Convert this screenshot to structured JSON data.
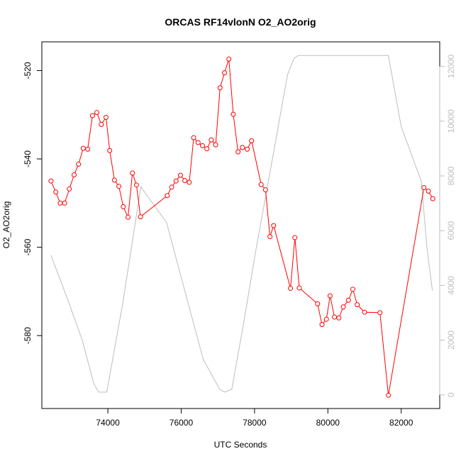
{
  "chart_data": {
    "type": "line",
    "title": "ORCAS RF14vlonN O2_AO2orig",
    "xlabel": "UTC Seconds",
    "ylabel": "O2_AO2orig",
    "xlim": [
      72200,
      83050
    ],
    "ylim": [
      -596.5,
      -513.5
    ],
    "y2lim": [
      -500,
      12900
    ],
    "x_ticks": [
      74000,
      76000,
      78000,
      80000,
      82000
    ],
    "x_tick_labels": [
      "74000",
      "76000",
      "78000",
      "80000",
      "82000"
    ],
    "y_ticks": [
      -520,
      -540,
      -560,
      -580
    ],
    "y_tick_labels": [
      "-520",
      "-540",
      "-560",
      "-580"
    ],
    "y2_ticks": [
      0,
      2000,
      4000,
      6000,
      8000,
      10000,
      12000
    ],
    "y2_tick_labels": [
      "0",
      "2000",
      "4000",
      "6000",
      "8000",
      "10000",
      "12000"
    ],
    "grid": false,
    "series": [
      {
        "color": "#ff0000",
        "marker": "open-circle",
        "x": [
          72450,
          72580,
          72700,
          72820,
          72950,
          73080,
          73200,
          73330,
          73450,
          73580,
          73700,
          73820,
          73950,
          74050,
          74180,
          74300,
          74420,
          74550,
          74670,
          74780,
          74890,
          75620,
          75740,
          75860,
          75980,
          76100,
          76220,
          76340,
          76460,
          76580,
          76700,
          76820,
          76940,
          77060,
          77180,
          77300,
          77420,
          77550,
          77670,
          77800,
          77920,
          78180,
          78300,
          78420,
          78520,
          78980,
          79100,
          79220,
          79720,
          79840,
          79960,
          80060,
          80180,
          80300,
          80420,
          80560,
          80680,
          80800,
          81000,
          81420,
          81650,
          82620,
          82740,
          82860
        ],
        "y": [
          -545.0,
          -547.5,
          -550.0,
          -550.0,
          -546.8,
          -543.6,
          -541.2,
          -537.6,
          -537.8,
          -530.2,
          -529.5,
          -532.2,
          -530.6,
          -538.1,
          -544.8,
          -546.2,
          -550.8,
          -553.2,
          -543.2,
          -545.9,
          -553.1,
          -548.3,
          -546.4,
          -545.0,
          -543.7,
          -544.9,
          -545.3,
          -535.2,
          -536.3,
          -537.0,
          -537.7,
          -535.7,
          -536.8,
          -523.9,
          -520.5,
          -517.4,
          -529.9,
          -538.4,
          -537.4,
          -537.8,
          -535.9,
          -545.8,
          -547.0,
          -557.6,
          -555.1,
          -569.3,
          -557.8,
          -569.2,
          -572.8,
          -577.5,
          -576.3,
          -571.0,
          -575.8,
          -576.0,
          -573.5,
          -572.0,
          -569.5,
          -573.0,
          -574.7,
          -574.8,
          -593.5,
          -546.5,
          -547.3,
          -549.0
        ]
      },
      {
        "color": "#bebebe",
        "marker": "none",
        "axis": "right",
        "x": [
          72450,
          72900,
          73300,
          73620,
          73750,
          73970,
          74400,
          74900,
          75600,
          76100,
          76600,
          77050,
          77180,
          77380,
          77700,
          78050,
          78500,
          78900,
          79080,
          79200,
          80000,
          81000,
          81650,
          82000,
          82550,
          82700,
          82850
        ],
        "y": [
          5100,
          3500,
          2000,
          400,
          100,
          100,
          3300,
          7600,
          6300,
          3800,
          1300,
          200,
          100,
          200,
          2600,
          5400,
          8700,
          11700,
          12300,
          12400,
          12400,
          12400,
          12400,
          9800,
          7800,
          5400,
          3800
        ]
      }
    ]
  }
}
